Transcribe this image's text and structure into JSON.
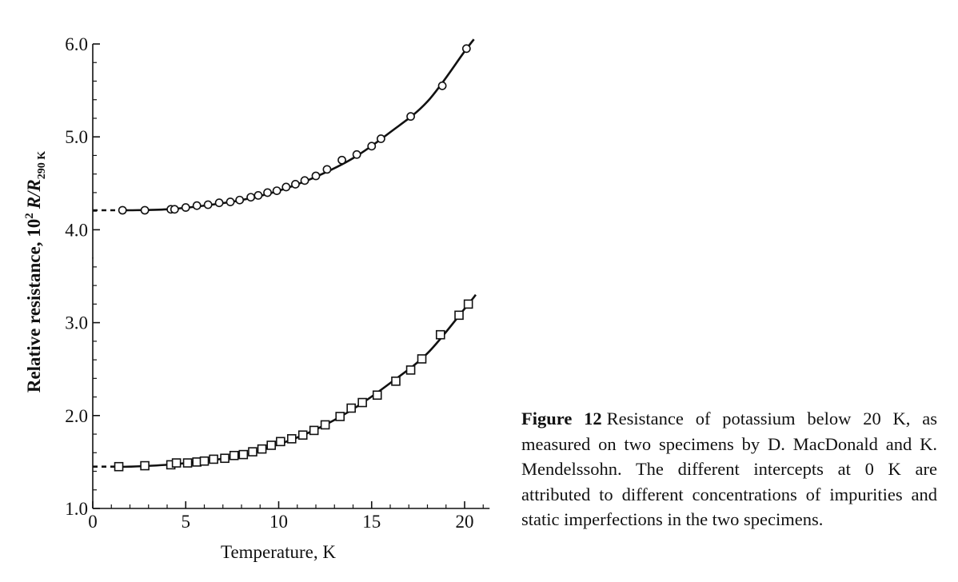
{
  "chart_data": {
    "type": "scatter",
    "title": "",
    "xlabel": "Temperature, K",
    "ylabel_main": "Relative resistance, 10",
    "ylabel_sup": "2",
    "ylabel_var": "R/R",
    "ylabel_sub": "290 K",
    "xlim": [
      0,
      21
    ],
    "ylim": [
      1.0,
      6.0
    ],
    "xticks": [
      0,
      5,
      10,
      15,
      20
    ],
    "xtick_labels": [
      "0",
      "5",
      "10",
      "15",
      "20"
    ],
    "yticks": [
      1.0,
      2.0,
      3.0,
      4.0,
      5.0,
      6.0
    ],
    "ytick_labels": [
      "1.0",
      "2.0",
      "3.0",
      "4.0",
      "5.0",
      "6.0"
    ],
    "grid": false,
    "legend": "none",
    "axis_break_between": [
      3.7,
      4.0
    ],
    "series": [
      {
        "marker": "circle",
        "x": [
          1.6,
          2.8,
          4.2,
          4.4,
          5.0,
          5.6,
          6.2,
          6.8,
          7.4,
          7.9,
          8.5,
          8.9,
          9.4,
          9.9,
          10.4,
          10.9,
          11.4,
          12.0,
          12.6,
          13.4,
          14.2,
          15.0,
          15.5,
          17.1,
          18.8,
          20.1
        ],
        "y": [
          4.21,
          4.21,
          4.22,
          4.22,
          4.24,
          4.26,
          4.27,
          4.29,
          4.3,
          4.32,
          4.35,
          4.37,
          4.4,
          4.42,
          4.46,
          4.49,
          4.53,
          4.58,
          4.65,
          4.75,
          4.81,
          4.9,
          4.98,
          5.22,
          5.55,
          5.95
        ],
        "fit_x": [
          0,
          2,
          4,
          6,
          8,
          10,
          12,
          14,
          16,
          18,
          20,
          20.5
        ],
        "fit_y": [
          4.21,
          4.21,
          4.22,
          4.26,
          4.32,
          4.42,
          4.57,
          4.77,
          5.05,
          5.38,
          5.92,
          6.05
        ],
        "extrapolated_x": [
          0,
          1.6
        ],
        "color": "#111111"
      },
      {
        "marker": "square",
        "x": [
          1.4,
          2.8,
          4.2,
          4.5,
          5.1,
          5.6,
          6.0,
          6.5,
          7.1,
          7.6,
          8.1,
          8.6,
          9.1,
          9.6,
          10.1,
          10.7,
          11.3,
          11.9,
          12.5,
          13.3,
          13.9,
          14.5,
          15.3,
          16.3,
          17.1,
          17.7,
          18.7,
          19.7,
          20.2
        ],
        "y": [
          1.45,
          1.46,
          1.47,
          1.49,
          1.49,
          1.5,
          1.51,
          1.53,
          1.54,
          1.57,
          1.58,
          1.61,
          1.64,
          1.68,
          1.72,
          1.75,
          1.79,
          1.84,
          1.9,
          1.99,
          2.08,
          2.14,
          2.22,
          2.37,
          2.49,
          2.61,
          2.87,
          3.08,
          3.2
        ],
        "fit_x": [
          0,
          2,
          4,
          6,
          8,
          10,
          12,
          14,
          16,
          18,
          20,
          20.6
        ],
        "fit_y": [
          1.45,
          1.45,
          1.47,
          1.51,
          1.57,
          1.69,
          1.85,
          2.07,
          2.35,
          2.67,
          3.15,
          3.3
        ],
        "extrapolated_x": [
          0,
          1.4
        ],
        "color": "#111111"
      }
    ]
  },
  "caption": {
    "label": "Figure 12",
    "text": "Resistance of potassium below 20 K, as measured on two specimens by D. MacDonald and K. Mendelssohn. The different intercepts at 0 K are attributed to different concentrations of impurities and static imperfections in the two specimens."
  }
}
